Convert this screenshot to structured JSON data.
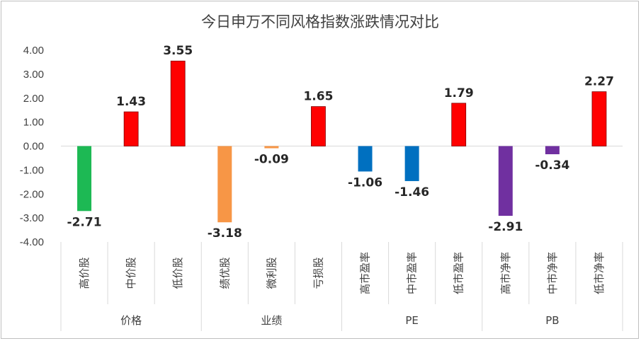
{
  "chart_data": {
    "type": "bar",
    "title": "今日申万不同风格指数涨跌情况对比",
    "ylim": [
      -4.0,
      4.0
    ],
    "yticks": [
      "4.00",
      "3.00",
      "2.00",
      "1.00",
      "0.00",
      "-1.00",
      "-2.00",
      "-3.00",
      "-4.00"
    ],
    "categories": [
      "高价股",
      "中价股",
      "低价股",
      "绩优股",
      "微利股",
      "亏损股",
      "高市盈率",
      "中市盈率",
      "低市盈率",
      "高市净率",
      "中市净率",
      "低市净率"
    ],
    "values": [
      -2.71,
      1.43,
      3.55,
      -3.18,
      -0.09,
      1.65,
      -1.06,
      -1.46,
      1.79,
      -2.91,
      -0.34,
      2.27
    ],
    "value_labels": [
      "-2.71",
      "1.43",
      "3.55",
      "-3.18",
      "-0.09",
      "1.65",
      "-1.06",
      "-1.46",
      "1.79",
      "-2.91",
      "-0.34",
      "2.27"
    ],
    "bar_colors": [
      "#1db954",
      "#ff0000",
      "#ff0000",
      "#f79646",
      "#f79646",
      "#ff0000",
      "#0070c0",
      "#0070c0",
      "#ff0000",
      "#7030a0",
      "#7030a0",
      "#ff0000"
    ],
    "groups": [
      {
        "label": "价格",
        "count": 3
      },
      {
        "label": "业绩",
        "count": 3
      },
      {
        "label": "PE",
        "count": 3
      },
      {
        "label": "PB",
        "count": 3
      }
    ],
    "grid": false,
    "legend": "none"
  }
}
